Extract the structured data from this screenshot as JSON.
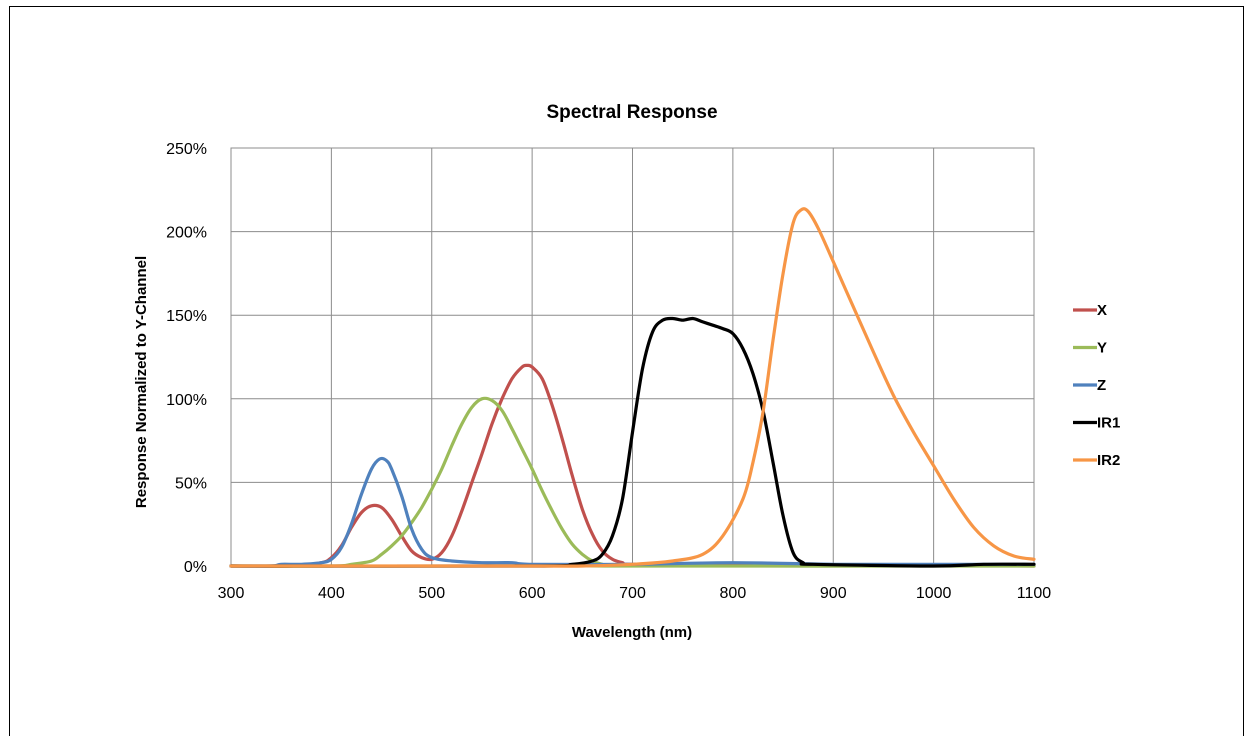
{
  "chart_data": {
    "type": "line",
    "title": "Spectral Response",
    "xlabel": "Wavelength (nm)",
    "ylabel": "Response Normalized to Y-Channel",
    "xlim": [
      300,
      1100
    ],
    "ylim": [
      0,
      250
    ],
    "xticks": [
      "300",
      "400",
      "500",
      "600",
      "700",
      "800",
      "900",
      "1000",
      "1100"
    ],
    "yticks": [
      "0%",
      "50%",
      "100%",
      "150%",
      "200%",
      "250%"
    ],
    "grid": true,
    "legend_position": "right",
    "series": [
      {
        "name": "X",
        "color": "#c0504d",
        "points": [
          [
            300,
            0
          ],
          [
            360,
            0
          ],
          [
            390,
            2
          ],
          [
            400,
            5
          ],
          [
            410,
            12
          ],
          [
            420,
            23
          ],
          [
            430,
            32
          ],
          [
            440,
            36
          ],
          [
            450,
            35
          ],
          [
            460,
            28
          ],
          [
            470,
            18
          ],
          [
            480,
            9
          ],
          [
            490,
            5
          ],
          [
            500,
            4
          ],
          [
            510,
            8
          ],
          [
            520,
            18
          ],
          [
            530,
            33
          ],
          [
            540,
            50
          ],
          [
            550,
            67
          ],
          [
            560,
            85
          ],
          [
            570,
            100
          ],
          [
            580,
            112
          ],
          [
            590,
            119
          ],
          [
            595,
            120
          ],
          [
            600,
            119
          ],
          [
            610,
            112
          ],
          [
            620,
            96
          ],
          [
            630,
            76
          ],
          [
            640,
            54
          ],
          [
            650,
            34
          ],
          [
            660,
            19
          ],
          [
            670,
            9
          ],
          [
            680,
            4
          ],
          [
            690,
            2
          ],
          [
            700,
            1
          ],
          [
            800,
            1
          ],
          [
            1100,
            0
          ]
        ]
      },
      {
        "name": "Y",
        "color": "#9bbb59",
        "points": [
          [
            300,
            0
          ],
          [
            400,
            0
          ],
          [
            420,
            1
          ],
          [
            440,
            3
          ],
          [
            450,
            7
          ],
          [
            460,
            12
          ],
          [
            470,
            18
          ],
          [
            480,
            26
          ],
          [
            490,
            35
          ],
          [
            500,
            46
          ],
          [
            510,
            58
          ],
          [
            520,
            72
          ],
          [
            530,
            85
          ],
          [
            540,
            95
          ],
          [
            550,
            100
          ],
          [
            560,
            99
          ],
          [
            570,
            93
          ],
          [
            580,
            82
          ],
          [
            590,
            70
          ],
          [
            600,
            58
          ],
          [
            610,
            45
          ],
          [
            620,
            33
          ],
          [
            630,
            22
          ],
          [
            640,
            13
          ],
          [
            650,
            7
          ],
          [
            660,
            3
          ],
          [
            670,
            1
          ],
          [
            680,
            0
          ],
          [
            1100,
            0
          ]
        ]
      },
      {
        "name": "Z",
        "color": "#4f81bd",
        "points": [
          [
            300,
            0
          ],
          [
            340,
            0
          ],
          [
            350,
            1
          ],
          [
            370,
            1
          ],
          [
            390,
            2
          ],
          [
            400,
            4
          ],
          [
            410,
            11
          ],
          [
            420,
            25
          ],
          [
            430,
            43
          ],
          [
            440,
            58
          ],
          [
            448,
            64
          ],
          [
            455,
            63
          ],
          [
            460,
            58
          ],
          [
            470,
            42
          ],
          [
            480,
            22
          ],
          [
            490,
            10
          ],
          [
            500,
            5
          ],
          [
            520,
            3
          ],
          [
            550,
            2
          ],
          [
            580,
            2
          ],
          [
            600,
            1
          ],
          [
            700,
            1
          ],
          [
            800,
            2
          ],
          [
            900,
            1
          ],
          [
            1000,
            1
          ],
          [
            1100,
            1
          ]
        ]
      },
      {
        "name": "IR1",
        "color": "#000000",
        "points": [
          [
            300,
            0
          ],
          [
            600,
            0
          ],
          [
            640,
            1
          ],
          [
            660,
            3
          ],
          [
            670,
            7
          ],
          [
            680,
            18
          ],
          [
            690,
            40
          ],
          [
            700,
            80
          ],
          [
            710,
            118
          ],
          [
            720,
            140
          ],
          [
            730,
            147
          ],
          [
            740,
            148
          ],
          [
            750,
            147
          ],
          [
            760,
            148
          ],
          [
            770,
            146
          ],
          [
            780,
            144
          ],
          [
            790,
            142
          ],
          [
            800,
            139
          ],
          [
            810,
            130
          ],
          [
            820,
            115
          ],
          [
            830,
            93
          ],
          [
            840,
            62
          ],
          [
            850,
            30
          ],
          [
            860,
            8
          ],
          [
            870,
            2
          ],
          [
            880,
            1
          ],
          [
            1000,
            0
          ],
          [
            1050,
            1
          ],
          [
            1100,
            1
          ]
        ]
      },
      {
        "name": "IR2",
        "color": "#f79646",
        "points": [
          [
            300,
            0
          ],
          [
            600,
            0
          ],
          [
            650,
            0
          ],
          [
            700,
            1
          ],
          [
            740,
            3
          ],
          [
            770,
            7
          ],
          [
            790,
            18
          ],
          [
            810,
            40
          ],
          [
            820,
            62
          ],
          [
            830,
            92
          ],
          [
            840,
            135
          ],
          [
            850,
            175
          ],
          [
            860,
            205
          ],
          [
            868,
            213
          ],
          [
            875,
            212
          ],
          [
            885,
            202
          ],
          [
            900,
            182
          ],
          [
            920,
            155
          ],
          [
            940,
            128
          ],
          [
            960,
            102
          ],
          [
            980,
            80
          ],
          [
            1000,
            60
          ],
          [
            1020,
            40
          ],
          [
            1040,
            23
          ],
          [
            1060,
            12
          ],
          [
            1080,
            6
          ],
          [
            1100,
            4
          ]
        ]
      }
    ]
  }
}
